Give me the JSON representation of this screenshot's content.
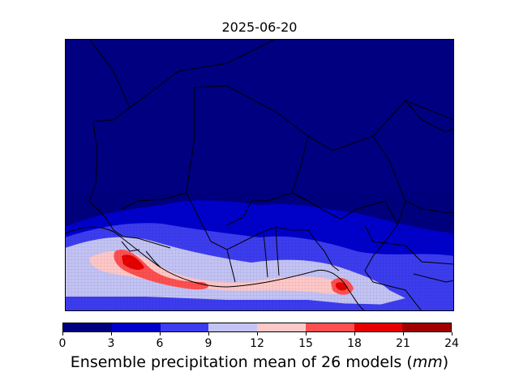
{
  "title": "2025-06-20",
  "colorbar": {
    "colors": [
      "#000080",
      "#0000cc",
      "#3c3cf0",
      "#c3c3f5",
      "#ffc8c8",
      "#ff5050",
      "#e60000",
      "#a00000"
    ],
    "ticks": [
      "0",
      "3",
      "6",
      "9",
      "12",
      "15",
      "18",
      "21",
      "24"
    ],
    "label_prefix": "Ensemble precipitation mean of 26 models (",
    "label_unit": "mm",
    "label_suffix": ")"
  },
  "map": {
    "background_color": "#000080",
    "precip_classes_mm": [
      0,
      3,
      6,
      9,
      12,
      15,
      18,
      21,
      24
    ]
  }
}
